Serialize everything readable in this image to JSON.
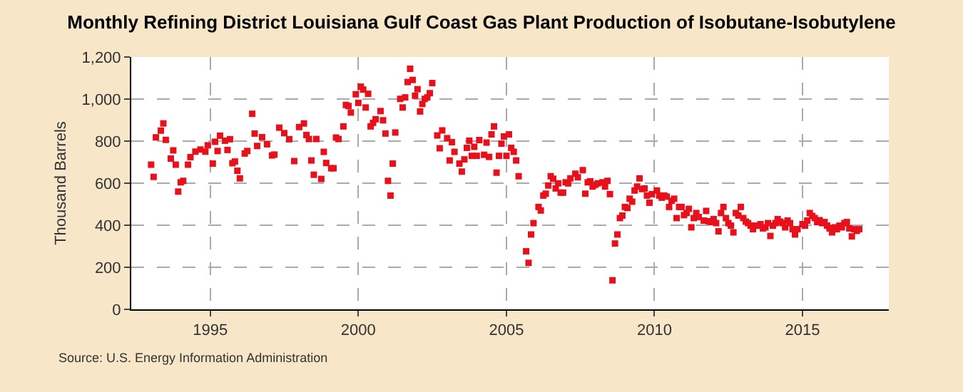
{
  "chart_data": {
    "type": "scatter",
    "title": "Monthly Refining District Louisiana Gulf Coast Gas Plant Production of Isobutane-Isobutylene",
    "ylabel": "Thousand Barrels",
    "annotations": [
      "Source: U.S. Energy Information Administration"
    ],
    "marker": "square",
    "grid": true,
    "xlim": [
      "1992-05",
      "2017-12"
    ],
    "xticks": [
      {
        "value": "1995",
        "label": "1995"
      },
      {
        "value": "2000",
        "label": "2000"
      },
      {
        "value": "2005",
        "label": "2005"
      },
      {
        "value": "2010",
        "label": "2010"
      },
      {
        "value": "2015",
        "label": "2015"
      }
    ],
    "ylim": [
      0,
      1200
    ],
    "yticks": [
      0,
      200,
      400,
      600,
      800,
      {
        "value": 1000,
        "label": "1,000"
      },
      {
        "value": 1200,
        "label": "1,200"
      }
    ],
    "series": [
      {
        "color": "#e8101a",
        "x": [
          "1993-01",
          "1993-02",
          "1993-03",
          "1993-05",
          "1993-06",
          "1993-07",
          "1993-09",
          "1993-10",
          "1993-11",
          "1993-12",
          "1994-01",
          "1994-02",
          "1994-04",
          "1994-05",
          "1994-07",
          "1994-09",
          "1994-11",
          "1994-12",
          "1995-02",
          "1995-03",
          "1995-04",
          "1995-05",
          "1995-07",
          "1995-08",
          "1995-09",
          "1995-10",
          "1995-11",
          "1995-12",
          "1996-01",
          "1996-03",
          "1996-04",
          "1996-06",
          "1996-07",
          "1996-08",
          "1996-10",
          "1996-12",
          "1997-02",
          "1997-03",
          "1997-05",
          "1997-07",
          "1997-09",
          "1997-11",
          "1998-01",
          "1998-03",
          "1998-04",
          "1998-05",
          "1998-06",
          "1998-07",
          "1998-08",
          "1998-10",
          "1998-11",
          "1998-12",
          "1999-02",
          "1999-03",
          "1999-04",
          "1999-05",
          "1999-07",
          "1999-08",
          "1999-09",
          "1999-10",
          "1999-12",
          "2000-01",
          "2000-02",
          "2000-03",
          "2000-04",
          "2000-05",
          "2000-06",
          "2000-07",
          "2000-08",
          "2000-10",
          "2000-11",
          "2000-12",
          "2001-01",
          "2001-02",
          "2001-03",
          "2001-04",
          "2001-06",
          "2001-07",
          "2001-08",
          "2001-09",
          "2001-10",
          "2001-11",
          "2001-12",
          "2002-01",
          "2002-02",
          "2002-03",
          "2002-04",
          "2002-05",
          "2002-06",
          "2002-07",
          "2002-09",
          "2002-10",
          "2002-11",
          "2003-01",
          "2003-02",
          "2003-03",
          "2003-04",
          "2003-06",
          "2003-07",
          "2003-08",
          "2003-09",
          "2003-10",
          "2003-11",
          "2003-12",
          "2004-01",
          "2004-02",
          "2004-04",
          "2004-05",
          "2004-06",
          "2004-07",
          "2004-08",
          "2004-09",
          "2004-10",
          "2004-11",
          "2004-12",
          "2005-01",
          "2005-02",
          "2005-03",
          "2005-04",
          "2005-05",
          "2005-06",
          "2005-09",
          "2005-10",
          "2005-11",
          "2005-12",
          "2006-02",
          "2006-03",
          "2006-04",
          "2006-05",
          "2006-06",
          "2006-07",
          "2006-08",
          "2006-09",
          "2006-10",
          "2006-11",
          "2006-12",
          "2007-01",
          "2007-02",
          "2007-03",
          "2007-05",
          "2007-06",
          "2007-08",
          "2007-09",
          "2007-10",
          "2007-11",
          "2007-12",
          "2008-01",
          "2008-02",
          "2008-04",
          "2008-05",
          "2008-06",
          "2008-07",
          "2008-08",
          "2008-09",
          "2008-10",
          "2008-11",
          "2008-12",
          "2009-01",
          "2009-02",
          "2009-03",
          "2009-04",
          "2009-05",
          "2009-06",
          "2009-07",
          "2009-08",
          "2009-09",
          "2009-10",
          "2009-11",
          "2009-12",
          "2010-02",
          "2010-03",
          "2010-04",
          "2010-05",
          "2010-06",
          "2010-07",
          "2010-08",
          "2010-09",
          "2010-10",
          "2010-11",
          "2010-12",
          "2011-01",
          "2011-02",
          "2011-03",
          "2011-04",
          "2011-05",
          "2011-06",
          "2011-07",
          "2011-09",
          "2011-10",
          "2011-11",
          "2011-12",
          "2012-01",
          "2012-02",
          "2012-03",
          "2012-04",
          "2012-05",
          "2012-06",
          "2012-07",
          "2012-08",
          "2012-09",
          "2012-10",
          "2012-11",
          "2012-12",
          "2013-01",
          "2013-02",
          "2013-03",
          "2013-04",
          "2013-05",
          "2013-06",
          "2013-07",
          "2013-08",
          "2013-09",
          "2013-10",
          "2013-11",
          "2013-12",
          "2014-01",
          "2014-02",
          "2014-03",
          "2014-04",
          "2014-05",
          "2014-06",
          "2014-07",
          "2014-08",
          "2014-09",
          "2014-10",
          "2014-11",
          "2015-01",
          "2015-02",
          "2015-03",
          "2015-04",
          "2015-05",
          "2015-06",
          "2015-07",
          "2015-08",
          "2015-09",
          "2015-10",
          "2015-11",
          "2015-12",
          "2016-01",
          "2016-02",
          "2016-03",
          "2016-04",
          "2016-05",
          "2016-06",
          "2016-07",
          "2016-08",
          "2016-09",
          "2016-10",
          "2016-11",
          "2016-12"
        ],
        "values": [
          688,
          630,
          818,
          850,
          884,
          806,
          717,
          756,
          688,
          560,
          604,
          611,
          688,
          724,
          750,
          760,
          750,
          780,
          693,
          797,
          753,
          826,
          802,
          758,
          809,
          695,
          703,
          659,
          623,
          741,
          753,
          930,
          836,
          777,
          819,
          785,
          732,
          736,
          864,
          838,
          809,
          705,
          867,
          884,
          829,
          810,
          708,
          640,
          810,
          620,
          749,
          696,
          671,
          671,
          817,
          810,
          870,
          972,
          967,
          936,
          1023,
          982,
          1059,
          1045,
          960,
          1025,
          870,
          887,
          904,
          943,
          899,
          836,
          611,
          541,
          693,
          841,
          1001,
          960,
          1008,
          1081,
          1144,
          1091,
          1016,
          1047,
          941,
          977,
          1001,
          1008,
          1028,
          1076,
          827,
          766,
          851,
          814,
          708,
          795,
          749,
          693,
          655,
          713,
          768,
          802,
          730,
          773,
          730,
          805,
          735,
          793,
          725,
          832,
          870,
          650,
          730,
          788,
          822,
          730,
          832,
          768,
          749,
          708,
          633,
          276,
          221,
          356,
          410,
          487,
          470,
          541,
          550,
          589,
          633,
          621,
          575,
          599,
          555,
          555,
          604,
          599,
          623,
          645,
          628,
          662,
          550,
          604,
          609,
          584,
          592,
          599,
          604,
          584,
          611,
          548,
          138,
          313,
          356,
          434,
          446,
          487,
          482,
          526,
          512,
          565,
          584,
          623,
          572,
          575,
          541,
          507,
          548,
          565,
          541,
          531,
          541,
          536,
          487,
          516,
          526,
          434,
          487,
          487,
          448,
          458,
          478,
          390,
          434,
          458,
          439,
          422,
          468,
          419,
          415,
          429,
          410,
          371,
          458,
          487,
          434,
          410,
          398,
          366,
          458,
          446,
          487,
          434,
          417,
          410,
          398,
          381,
          398,
          398,
          405,
          385,
          390,
          410,
          349,
          398,
          410,
          429,
          417,
          410,
          390,
          422,
          410,
          381,
          356,
          381,
          405,
          398,
          422,
          458,
          444,
          434,
          415,
          424,
          410,
          415,
          398,
          385,
          366,
          390,
          381,
          398,
          390,
          410,
          415,
          385,
          347,
          381,
          373,
          381
        ]
      }
    ]
  }
}
